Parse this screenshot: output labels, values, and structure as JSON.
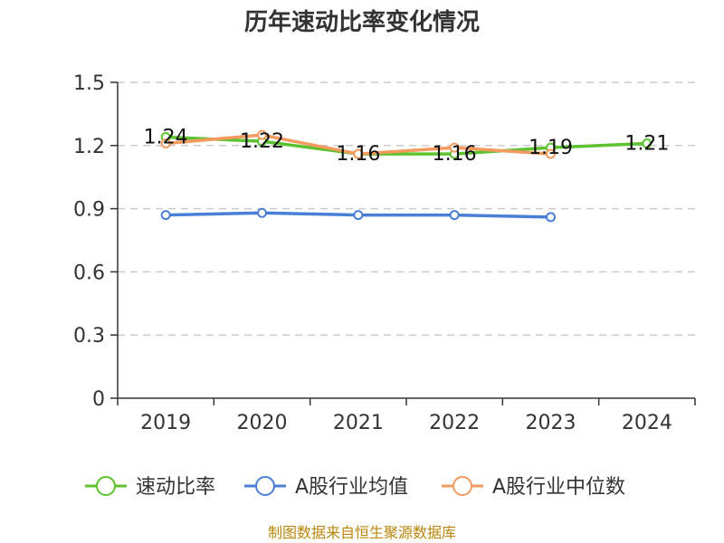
{
  "chart_data": {
    "type": "line",
    "title": "历年速动比率变化情况",
    "categories": [
      "2019",
      "2020",
      "2021",
      "2022",
      "2023",
      "2024"
    ],
    "ylim": [
      0,
      1.5
    ],
    "yticks": [
      "0",
      "0.3",
      "0.6",
      "0.9",
      "1.2",
      "1.5"
    ],
    "grid": true,
    "legend_position": "bottom",
    "series": [
      {
        "name": "速动比率",
        "color": "#5cc22f",
        "values": [
          1.24,
          1.22,
          1.16,
          1.16,
          1.19,
          1.21
        ],
        "labels": [
          "1.24",
          "1.22",
          "1.16",
          "1.16",
          "1.19",
          "1.21"
        ]
      },
      {
        "name": "A股行业均值",
        "color": "#4a7fd6",
        "values": [
          0.87,
          0.88,
          0.87,
          0.87,
          0.86,
          null
        ]
      },
      {
        "name": "A股行业中位数",
        "color": "#f39a5f",
        "values": [
          1.21,
          1.25,
          1.16,
          1.19,
          1.16,
          null
        ]
      }
    ],
    "source": "制图数据来自恒生聚源数据库"
  }
}
